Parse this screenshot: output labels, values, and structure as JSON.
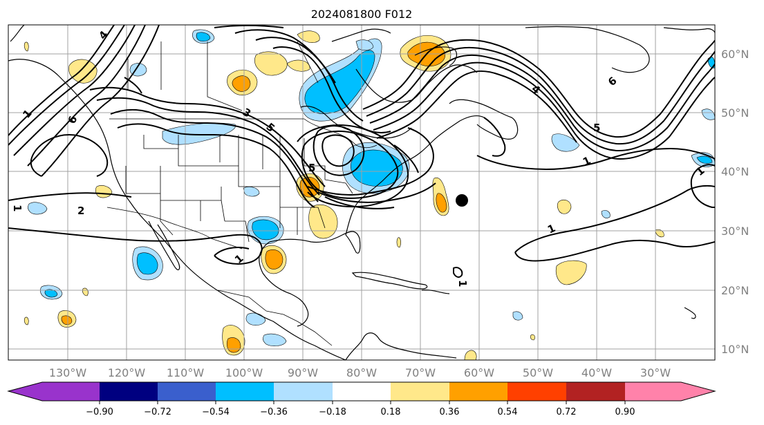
{
  "title": "2024081800 F012",
  "map": {
    "lon_range": [
      -140,
      -20
    ],
    "lat_range": [
      8,
      65
    ],
    "lon_labels": [
      "130°W",
      "120°W",
      "110°W",
      "100°W",
      "90°W",
      "80°W",
      "70°W",
      "60°W",
      "50°W",
      "40°W",
      "30°W"
    ],
    "lon_values": [
      -130,
      -120,
      -110,
      -100,
      -90,
      -80,
      -70,
      -60,
      -50,
      -40,
      -30
    ],
    "lat_labels": [
      "60°N",
      "50°N",
      "40°N",
      "30°N",
      "20°N",
      "10°N"
    ],
    "lat_values": [
      60,
      50,
      40,
      30,
      20,
      10
    ],
    "contour_labels": [
      "1",
      "4",
      "6",
      "5",
      "3",
      "2",
      "1",
      "1",
      "5",
      "1",
      "4",
      "6",
      "5",
      "1",
      "1",
      "1"
    ],
    "marker": {
      "lon": -63.5,
      "lat": 35.2
    }
  },
  "colorbar": {
    "ticks": [
      "−0.90",
      "−0.72",
      "−0.54",
      "−0.36",
      "−0.18",
      "0.18",
      "0.36",
      "0.54",
      "0.72",
      "0.90"
    ],
    "colors": [
      "#9933cc",
      "#000080",
      "#3a5fcd",
      "#00bfff",
      "#b0e0ff",
      "#ffffff",
      "#ffe88a",
      "#ffa000",
      "#ff4000",
      "#b22222",
      "#ff82aa"
    ]
  }
}
